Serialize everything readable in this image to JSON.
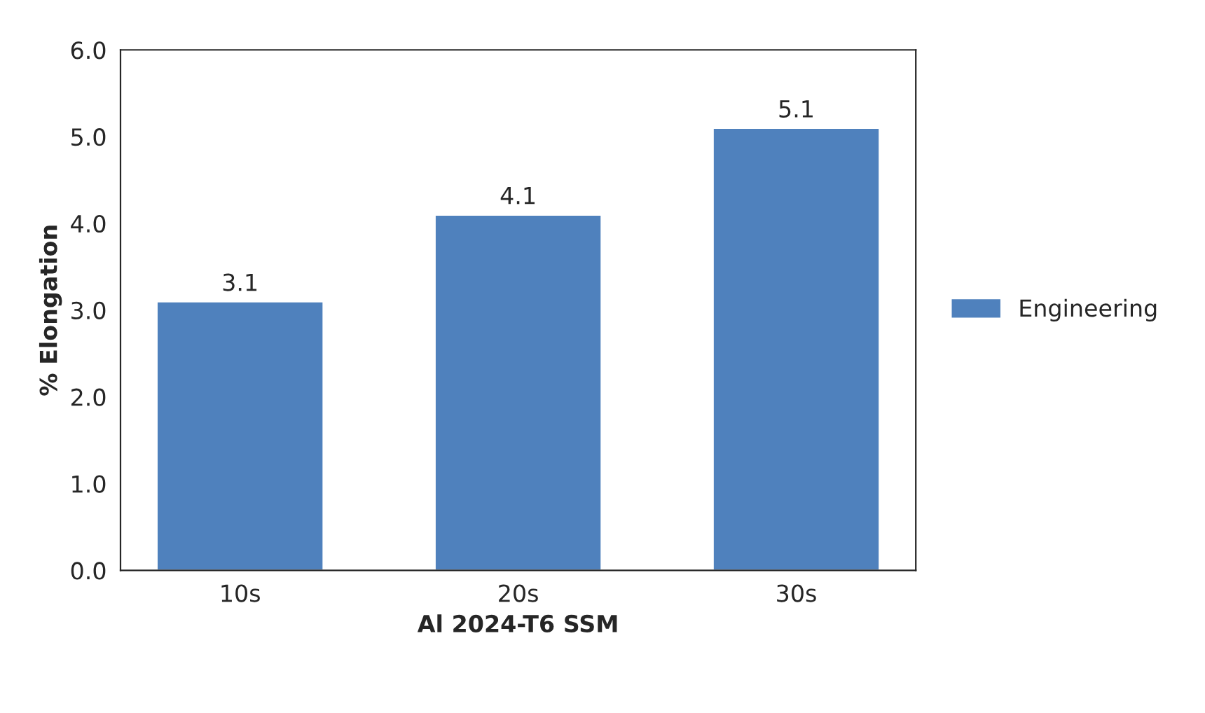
{
  "chart_data": {
    "type": "bar",
    "xlabel": "Al 2024-T6 SSM",
    "ylabel": "% Elongation",
    "categories": [
      "10s",
      "20s",
      "30s"
    ],
    "series": [
      {
        "name": "Engineering",
        "color": "#4f81bd",
        "values": [
          3.1,
          4.1,
          5.1
        ]
      }
    ],
    "ylim": [
      0,
      6
    ],
    "yticks": [
      {
        "value": 0,
        "label": "0.0"
      },
      {
        "value": 1,
        "label": "1.0"
      },
      {
        "value": 2,
        "label": "2.0"
      },
      {
        "value": 3,
        "label": "3.0"
      },
      {
        "value": 4,
        "label": "4.0"
      },
      {
        "value": 5,
        "label": "5.0"
      },
      {
        "value": 6,
        "label": "6.0"
      }
    ],
    "data_labels": true,
    "legend": "right",
    "grid": false
  }
}
